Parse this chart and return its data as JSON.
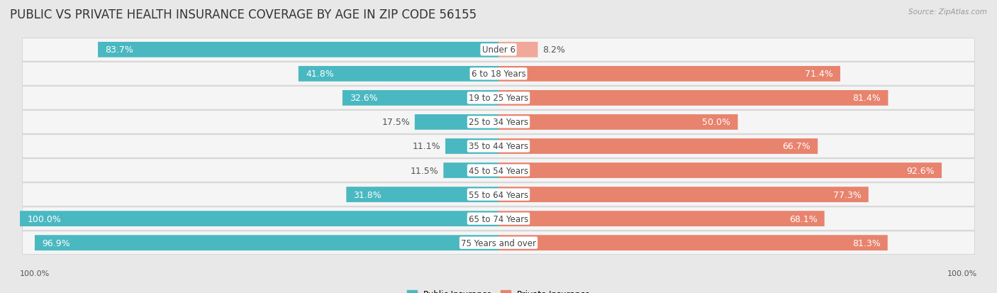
{
  "title": "PUBLIC VS PRIVATE HEALTH INSURANCE COVERAGE BY AGE IN ZIP CODE 56155",
  "source": "Source: ZipAtlas.com",
  "categories": [
    "Under 6",
    "6 to 18 Years",
    "19 to 25 Years",
    "25 to 34 Years",
    "35 to 44 Years",
    "45 to 54 Years",
    "55 to 64 Years",
    "65 to 74 Years",
    "75 Years and over"
  ],
  "public_values": [
    83.7,
    41.8,
    32.6,
    17.5,
    11.1,
    11.5,
    31.8,
    100.0,
    96.9
  ],
  "private_values": [
    8.2,
    71.4,
    81.4,
    50.0,
    66.7,
    92.6,
    77.3,
    68.1,
    81.3
  ],
  "public_color": "#4ab8c1",
  "private_color": "#e8836e",
  "private_color_light": "#f0a898",
  "background_color": "#e8e8e8",
  "row_bg_color": "#f5f5f5",
  "bar_height": 0.62,
  "legend_labels": [
    "Public Insurance",
    "Private Insurance"
  ],
  "title_fontsize": 12,
  "label_fontsize": 9,
  "axis_label_fontsize": 8,
  "pub_inside_threshold": 25,
  "priv_inside_threshold": 25
}
